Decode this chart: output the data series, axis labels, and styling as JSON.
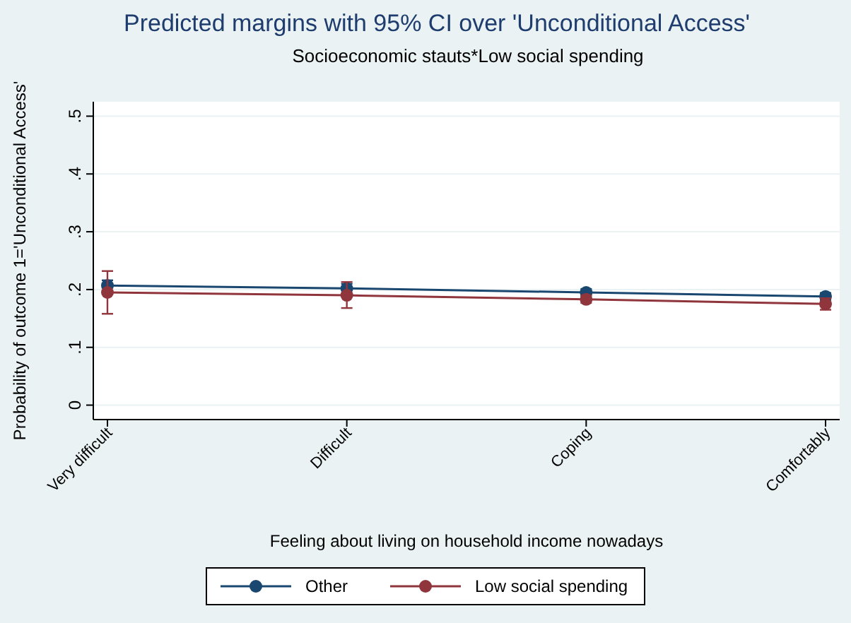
{
  "chart_data": {
    "type": "line",
    "title": "Predicted margins with 95% CI over 'Unconditional Access'",
    "subtitle": "Socioeconomic stauts*Low social spending",
    "xlabel": "Feeling about living on household income nowadays",
    "ylabel": "Probability of outcome 1='Unconditional Access'",
    "categories": [
      "Very difficult",
      "Difficult",
      "Coping",
      "Comfortably"
    ],
    "series": [
      {
        "name": "Other",
        "color": "#1a476f",
        "values": [
          0.207,
          0.202,
          0.195,
          0.188
        ],
        "errors": [
          0.009,
          0.008,
          0.006,
          0.006
        ]
      },
      {
        "name": "Low social spending",
        "color": "#90353b",
        "values": [
          0.195,
          0.19,
          0.183,
          0.175
        ],
        "errors": [
          [
            0.158,
            0.232
          ],
          [
            0.168,
            0.213
          ],
          [
            0.177,
            0.19
          ],
          [
            0.165,
            0.185
          ]
        ]
      }
    ],
    "ylim": [
      -0.025,
      0.525
    ],
    "yticks": [
      {
        "value": 0,
        "label": "0"
      },
      {
        "value": 0.1,
        "label": ".1"
      },
      {
        "value": 0.2,
        "label": ".2"
      },
      {
        "value": 0.3,
        "label": ".3"
      },
      {
        "value": 0.4,
        "label": ".4"
      },
      {
        "value": 0.5,
        "label": ".5"
      }
    ],
    "grid": "y",
    "legend": "bottom",
    "marker": "circle"
  }
}
